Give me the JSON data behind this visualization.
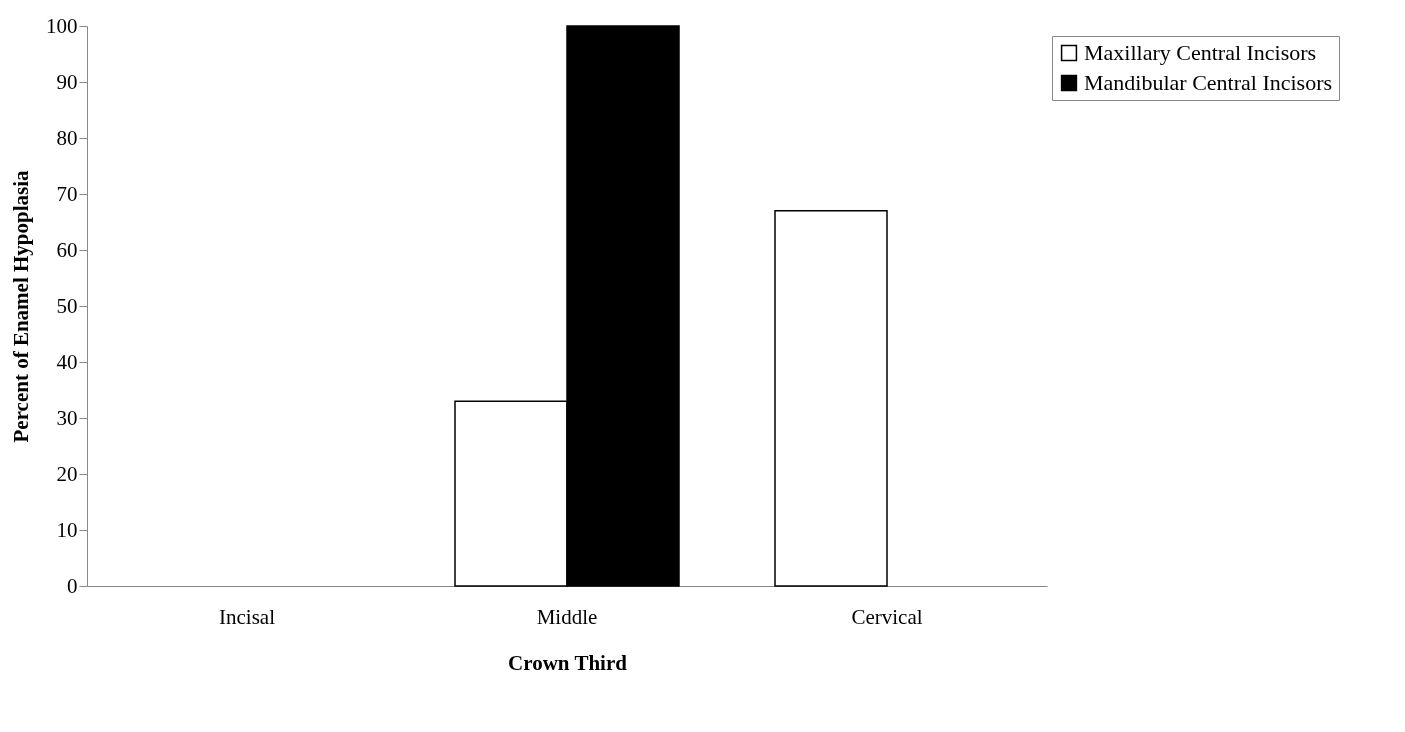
{
  "chart_data": {
    "type": "bar",
    "xlabel": "Crown Third",
    "ylabel": "Percent of Enamel Hypoplasia",
    "categories": [
      "Incisal",
      "Middle",
      "Cervical"
    ],
    "series": [
      {
        "name": "Maxillary Central Incisors",
        "color": "#ffffff",
        "values": [
          0,
          33,
          67
        ]
      },
      {
        "name": "Mandibular Central Incisors",
        "color": "#000000",
        "values": [
          0,
          100,
          0
        ]
      }
    ],
    "ylim": [
      0,
      100
    ],
    "yticks": [
      0,
      10,
      20,
      30,
      40,
      50,
      60,
      70,
      80,
      90,
      100
    ],
    "grid": false,
    "legend": "top right"
  }
}
